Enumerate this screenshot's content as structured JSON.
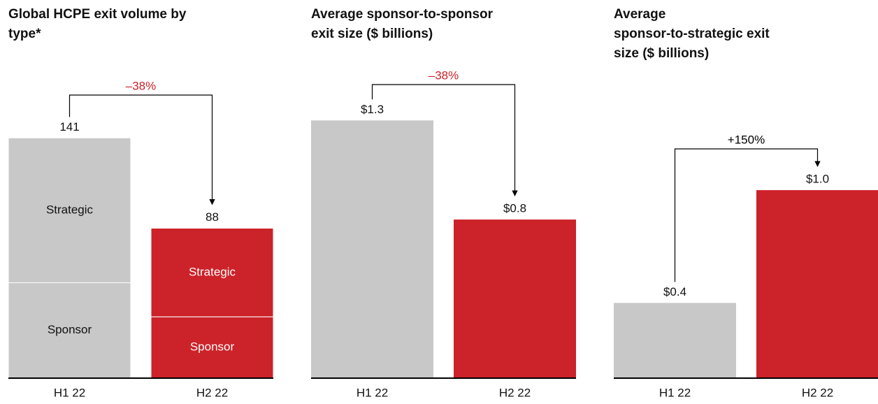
{
  "chart_data": [
    {
      "type": "bar",
      "stacked": true,
      "title": "Global HCPE exit volume by type*",
      "categories": [
        "H1 22",
        "H2 22"
      ],
      "colors": [
        "#c8c8c8",
        "#cc2229"
      ],
      "series": [
        {
          "name": "Sponsor",
          "values": [
            56,
            36
          ]
        },
        {
          "name": "Strategic",
          "values": [
            85,
            52
          ]
        }
      ],
      "totals": [
        141,
        88
      ],
      "ylim": [
        0,
        160
      ],
      "annotation": "–38%",
      "annotation_color": "#cc2229"
    },
    {
      "type": "bar",
      "title": "Average sponsor-to-sponsor exit size ($ billions)",
      "categories": [
        "H1 22",
        "H2 22"
      ],
      "colors": [
        "#c8c8c8",
        "#cc2229"
      ],
      "values": [
        1.3,
        0.8
      ],
      "value_labels": [
        "$1.3",
        "$0.8"
      ],
      "ylim": [
        0,
        1.375
      ],
      "annotation": "–38%",
      "annotation_color": "#cc2229"
    },
    {
      "type": "bar",
      "title": "Average sponsor-to-strategic exit size ($ billions)",
      "categories": [
        "H1 22",
        "H2 22"
      ],
      "colors": [
        "#c8c8c8",
        "#cc2229"
      ],
      "values": [
        0.4,
        1.0
      ],
      "value_labels": [
        "$0.4",
        "$1.0"
      ],
      "ylim": [
        0,
        1.45
      ],
      "annotation": "+150%",
      "annotation_color": "#000000"
    }
  ]
}
